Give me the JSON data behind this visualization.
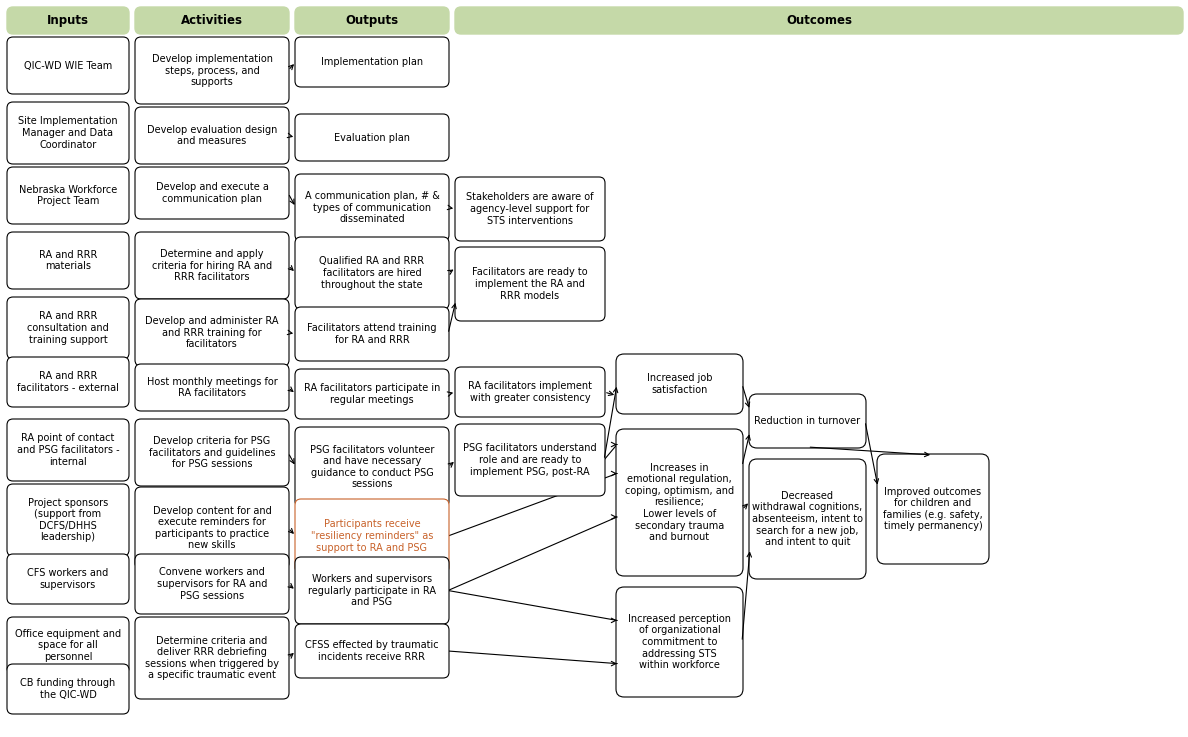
{
  "bg_color": "#ffffff",
  "header_bg": "#c5d9a8",
  "header_text_color": "#000000",
  "box_bg": "#ffffff",
  "box_edge": "#000000",
  "orange_text": "#c8622a",
  "arrow_color": "#000000",
  "gray_edge": "#888888",
  "inputs": [
    "QIC-WD WIE Team",
    "Site Implementation\nManager and Data\nCoordinator",
    "Nebraska Workforce\nProject Team",
    "RA and RRR\nmaterials",
    "RA and RRR\nconsultation and\ntraining support",
    "RA and RRR\nfacilitators - external",
    "RA point of contact\nand PSG facilitators -\ninternal",
    "Project sponsors\n(support from\nDCFS/DHHS\nleadership)",
    "CFS workers and\nsupervisors",
    "Office equipment and\nspace for all\npersonnel",
    "CB funding through\nthe QIC-WD"
  ],
  "activities": [
    "Develop implementation\nsteps, process, and\nsupports",
    "Develop evaluation design\nand measures",
    "Develop and execute a\ncommunication plan",
    "Determine and apply\ncriteria for hiring RA and\nRRR facilitators",
    "Develop and administer RA\nand RRR training for\nfacilitators",
    "Host monthly meetings for\nRA facilitators",
    "Develop criteria for PSG\nfacilitators and guidelines\nfor PSG sessions",
    "Develop content for and\nexecute reminders for\nparticipants to practice\nnew skills",
    "Convene workers and\nsupervisors for RA and\nPSG sessions",
    "Determine criteria and\ndeliver RRR debriefing\nsessions when triggered by\na specific traumatic event"
  ],
  "outputs": [
    "Implementation plan",
    "Evaluation plan",
    "A communication plan, # &\ntypes of communication\ndisseminated",
    "Qualified RA and RRR\nfacilitators are hired\nthroughout the state",
    "Facilitators attend training\nfor RA and RRR",
    "RA facilitators participate in\nregular meetings",
    "PSG facilitators volunteer\nand have necessary\nguidance to conduct PSG\nsessions",
    "Participants receive\n\"resiliency reminders\" as\nsupport to RA and PSG",
    "Workers and supervisors\nregularly participate in RA\nand PSG",
    "CFSS effected by traumatic\nincidents receive RRR"
  ]
}
